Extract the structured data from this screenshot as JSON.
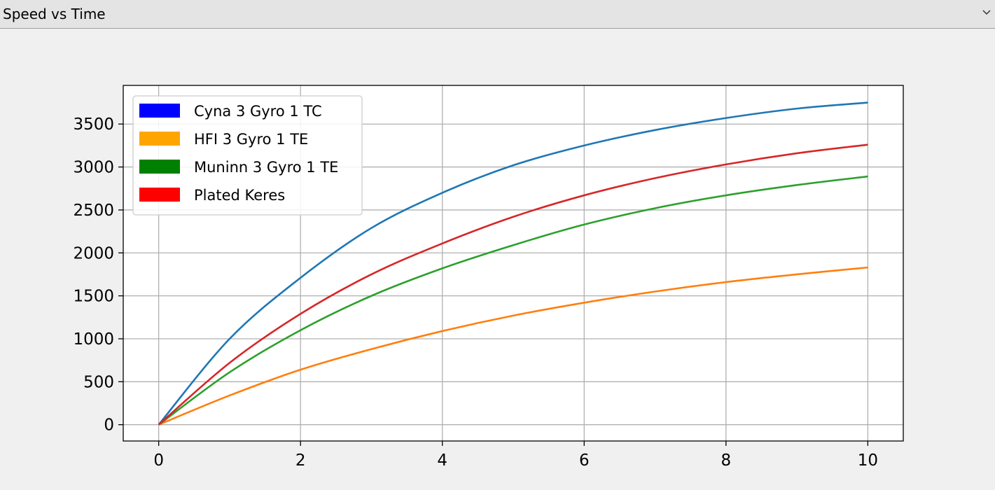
{
  "window": {
    "title": "Speed vs Time",
    "icons": {
      "dropdown": "chevron-down-icon"
    }
  },
  "chart_data": {
    "type": "line",
    "title": "",
    "xlabel": "",
    "ylabel": "",
    "xlim": [
      -0.5,
      10.5
    ],
    "ylim": [
      -190,
      3950
    ],
    "grid": true,
    "legend_position": "top-left",
    "x_ticks": [
      0,
      2,
      4,
      6,
      8,
      10
    ],
    "y_ticks": [
      0,
      500,
      1000,
      1500,
      2000,
      2500,
      3000,
      3500
    ],
    "x": [
      0,
      1,
      2,
      3,
      4,
      5,
      6,
      7,
      8,
      9,
      10
    ],
    "series": [
      {
        "name": "Cyna 3 Gyro 1 TC",
        "legend_color": "#0000ff",
        "line_color": "#1f77b4",
        "values": [
          0,
          1000,
          1710,
          2290,
          2700,
          3020,
          3250,
          3430,
          3570,
          3680,
          3750
        ]
      },
      {
        "name": "HFI 3 Gyro 1 TE",
        "legend_color": "#ffa500",
        "line_color": "#ff7f0e",
        "values": [
          0,
          340,
          640,
          880,
          1090,
          1270,
          1420,
          1550,
          1660,
          1750,
          1830
        ]
      },
      {
        "name": "Muninn 3 Gyro 1 TE",
        "legend_color": "#008000",
        "line_color": "#2ca02c",
        "values": [
          0,
          610,
          1100,
          1500,
          1820,
          2090,
          2330,
          2520,
          2670,
          2790,
          2890
        ]
      },
      {
        "name": "Plated Keres",
        "legend_color": "#ff0000",
        "line_color": "#d62728",
        "values": [
          0,
          720,
          1290,
          1750,
          2110,
          2420,
          2670,
          2870,
          3030,
          3160,
          3260
        ]
      }
    ]
  }
}
